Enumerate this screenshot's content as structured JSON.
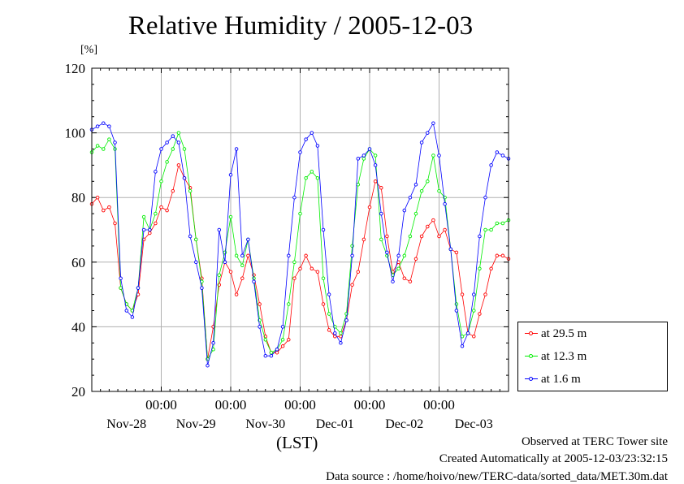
{
  "title": "Relative Humidity / 2005-12-03",
  "y_unit_label": "[%]",
  "x_axis_note": "(LST)",
  "footer": {
    "line1": "Observed at TERC Tower site",
    "line2": "Created Automatically at 2005-12-03/23:32:15",
    "line3": "Data source : /home/hoivo/new/TERC-data/sorted_data/MET.30m.dat"
  },
  "colors": {
    "red": "#ff0000",
    "green": "#00ee00",
    "blue": "#0000ff",
    "grid": "#b0b0b0"
  },
  "chart_data": {
    "type": "line",
    "title": "Relative Humidity / 2005-12-03",
    "ylabel": "[%]",
    "xlabel": "(LST)",
    "ylim": [
      20,
      120
    ],
    "yticks": [
      20,
      40,
      60,
      80,
      100,
      120
    ],
    "xlim": [
      0,
      144
    ],
    "x_unit": "hours since Nov-27 00:00 (LST)",
    "xticks": [
      {
        "x": 24,
        "time": "00:00",
        "date": "Nov-28"
      },
      {
        "x": 48,
        "time": "00:00",
        "date": "Nov-29"
      },
      {
        "x": 72,
        "time": "00:00",
        "date": "Nov-30"
      },
      {
        "x": 96,
        "time": "00:00",
        "date": "Dec-01"
      },
      {
        "x": 120,
        "time": "00:00",
        "date": "Dec-02"
      },
      {
        "x": 144,
        "time": "",
        "date": "Dec-03"
      }
    ],
    "grid": true,
    "legend_position": "bottom-right, outside plot",
    "series": [
      {
        "name": "at 29.5 m",
        "color": "#ff0000",
        "x": [
          0,
          2,
          4,
          6,
          8,
          10,
          12,
          14,
          16,
          18,
          20,
          22,
          24,
          26,
          28,
          30,
          32,
          34,
          36,
          38,
          40,
          42,
          44,
          46,
          48,
          50,
          52,
          54,
          56,
          58,
          60,
          62,
          64,
          66,
          68,
          70,
          72,
          74,
          76,
          78,
          80,
          82,
          84,
          86,
          88,
          90,
          92,
          94,
          96,
          98,
          100,
          102,
          104,
          106,
          108,
          110,
          112,
          114,
          116,
          118,
          120,
          122,
          124,
          126,
          128,
          130,
          132,
          134,
          136,
          138,
          140,
          142,
          144
        ],
        "y": [
          78,
          80,
          76,
          77,
          72,
          52,
          47,
          45,
          50,
          67,
          69,
          72,
          77,
          76,
          82,
          90,
          86,
          83,
          67,
          55,
          30,
          40,
          53,
          60,
          57,
          50,
          55,
          62,
          56,
          47,
          37,
          32,
          32,
          34,
          36,
          55,
          58,
          62,
          58,
          57,
          47,
          39,
          37,
          37,
          42,
          53,
          57,
          67,
          77,
          85,
          83,
          68,
          57,
          60,
          55,
          54,
          61,
          68,
          71,
          73,
          68,
          70,
          64,
          63,
          50,
          38,
          37,
          44,
          50,
          58,
          62,
          62,
          61
        ]
      },
      {
        "name": "at 12.3 m",
        "color": "#00ee00",
        "x": [
          0,
          2,
          4,
          6,
          8,
          10,
          12,
          14,
          16,
          18,
          20,
          22,
          24,
          26,
          28,
          30,
          32,
          34,
          36,
          38,
          40,
          42,
          44,
          46,
          48,
          50,
          52,
          54,
          56,
          58,
          60,
          62,
          64,
          66,
          68,
          70,
          72,
          74,
          76,
          78,
          80,
          82,
          84,
          86,
          88,
          90,
          92,
          94,
          96,
          98,
          100,
          102,
          104,
          106,
          108,
          110,
          112,
          114,
          116,
          118,
          120,
          122,
          124,
          126,
          128,
          130,
          132,
          134,
          136,
          138,
          140,
          142,
          144
        ],
        "y": [
          94,
          96,
          95,
          98,
          95,
          52,
          47,
          45,
          52,
          74,
          70,
          75,
          85,
          91,
          95,
          100,
          95,
          82,
          67,
          54,
          30,
          33,
          56,
          63,
          74,
          62,
          59,
          67,
          55,
          42,
          36,
          32,
          33,
          36,
          47,
          60,
          75,
          86,
          88,
          86,
          55,
          44,
          40,
          38,
          44,
          65,
          84,
          92,
          95,
          93,
          67,
          62,
          56,
          58,
          62,
          68,
          75,
          82,
          85,
          93,
          82,
          80,
          64,
          47,
          37,
          38,
          45,
          58,
          70,
          70,
          72,
          72,
          73
        ]
      },
      {
        "name": "at 1.6 m",
        "color": "#0000ff",
        "x": [
          0,
          2,
          4,
          6,
          8,
          10,
          12,
          14,
          16,
          18,
          20,
          22,
          24,
          26,
          28,
          30,
          32,
          34,
          36,
          38,
          40,
          42,
          44,
          46,
          48,
          50,
          52,
          54,
          56,
          58,
          60,
          62,
          64,
          66,
          68,
          70,
          72,
          74,
          76,
          78,
          80,
          82,
          84,
          86,
          88,
          90,
          92,
          94,
          96,
          98,
          100,
          102,
          104,
          106,
          108,
          110,
          112,
          114,
          116,
          118,
          120,
          122,
          124,
          126,
          128,
          130,
          132,
          134,
          136,
          138,
          140,
          142,
          144
        ],
        "y": [
          101,
          102,
          103,
          102,
          97,
          55,
          45,
          43,
          52,
          70,
          70,
          88,
          95,
          97,
          99,
          97,
          86,
          68,
          60,
          52,
          28,
          35,
          70,
          60,
          87,
          95,
          62,
          67,
          54,
          40,
          31,
          31,
          33,
          40,
          62,
          80,
          94,
          98,
          100,
          96,
          70,
          50,
          38,
          35,
          42,
          62,
          92,
          93,
          95,
          90,
          75,
          63,
          54,
          62,
          76,
          80,
          84,
          97,
          100,
          103,
          93,
          78,
          64,
          45,
          34,
          38,
          50,
          68,
          80,
          90,
          94,
          93,
          92
        ]
      }
    ]
  },
  "legend": [
    {
      "label": "at 29.5 m",
      "color": "#ff0000"
    },
    {
      "label": "at 12.3 m",
      "color": "#00ee00"
    },
    {
      "label": "at 1.6 m",
      "color": "#0000ff"
    }
  ]
}
